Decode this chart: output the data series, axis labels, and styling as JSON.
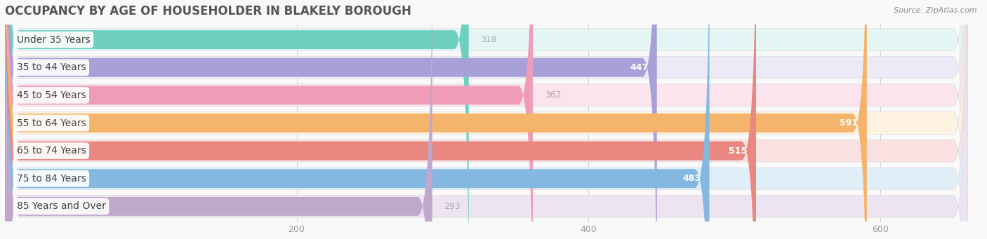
{
  "title": "OCCUPANCY BY AGE OF HOUSEHOLDER IN BLAKELY BOROUGH",
  "source": "Source: ZipAtlas.com",
  "categories": [
    "Under 35 Years",
    "35 to 44 Years",
    "45 to 54 Years",
    "55 to 64 Years",
    "65 to 74 Years",
    "75 to 84 Years",
    "85 Years and Over"
  ],
  "values": [
    318,
    447,
    362,
    591,
    515,
    483,
    293
  ],
  "bar_colors": [
    "#6dcfc0",
    "#a8a0d8",
    "#f09cb8",
    "#f4b46c",
    "#e88880",
    "#84b8e0",
    "#c0a8cc"
  ],
  "bar_bg_colors": [
    "#e4f6f4",
    "#eceaf6",
    "#fce4ee",
    "#fef2e0",
    "#fae0e0",
    "#e0eef8",
    "#ede4f2"
  ],
  "xlim_data": [
    0,
    660
  ],
  "xticks": [
    200,
    400,
    600
  ],
  "title_fontsize": 12,
  "bar_label_fontsize": 10,
  "value_fontsize": 9,
  "background_color": "#f9f9f9",
  "tick_label_color": "#999999"
}
